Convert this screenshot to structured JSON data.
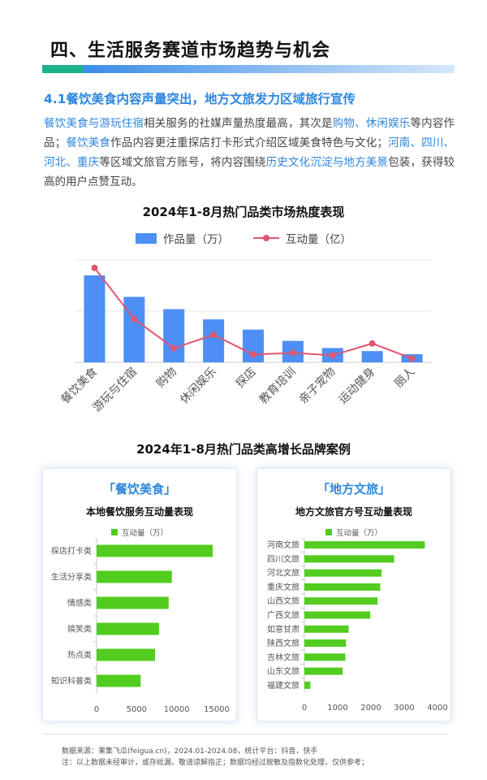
{
  "header": {
    "section_title": "四、生活服务赛道市场趋势与机会"
  },
  "subtitle": "4.1餐饮美食内容声量突出，地方文旅发力区域旅行宣传",
  "paragraph": {
    "seg1": "餐饮美食与游玩住宿",
    "seg2": "相关服务的社媒声量热度最高，其次是",
    "seg3": "购物、休闲娱乐",
    "seg4": "等内容作品；",
    "seg5": "餐饮美食",
    "seg6": "作品内容更注重探店打卡形式介绍区域美食特色与文化；",
    "seg7": "河南、四川、河北、重庆",
    "seg8": "等区域文旅官方账号，将内容围绕",
    "seg9": "历史文化沉淀与地方美景",
    "seg10": "包装，获得较高的用户点赞互动。"
  },
  "main_chart": {
    "title": "2024年1-8月热门品类市场热度表现",
    "legend_bar": "作品量（万）",
    "legend_line": "互动量（亿）"
  },
  "cases_title": "2024年1-8月热门品类高增长品牌案例",
  "card_left": {
    "head": "「餐饮美食」",
    "sub": "本地餐饮服务互动量表现",
    "legend": "互动量（万）"
  },
  "card_right": {
    "head": "「地方文旅」",
    "sub": "地方文旅官方号互动量表现",
    "legend": "互动量（万）"
  },
  "colors": {
    "accent_blue": "#2e86de",
    "bar_blue": "#4d8ff5",
    "line_red": "#e0566f",
    "bar_green": "#52cc1f",
    "title_green": "#19b38a"
  },
  "chart_data": [
    {
      "type": "bar",
      "title": "2024年1-8月热门品类市场热度表现",
      "categories": [
        "餐饮美食",
        "游玩与住宿",
        "购物",
        "休闲娱乐",
        "探店",
        "教育培训",
        "亲子宠物",
        "运动健身",
        "丽人"
      ],
      "series": [
        {
          "name": "作品量（万）",
          "type": "bar",
          "values": [
            85,
            64,
            52,
            42,
            32,
            21,
            14,
            11,
            8
          ]
        },
        {
          "name": "互动量（亿）",
          "type": "line",
          "values": [
            12,
            5.5,
            1.8,
            3.5,
            1,
            1.2,
            0.9,
            2.4,
            0.5
          ]
        }
      ],
      "grid": true,
      "legend": "top-center"
    },
    {
      "type": "bar",
      "orientation": "horizontal",
      "title": "本地餐饮服务互动量表现",
      "categories": [
        "探店打卡类",
        "生活分享类",
        "情感类",
        "搞笑类",
        "热点类",
        "知识科普类"
      ],
      "series": [
        {
          "name": "互动量（万）",
          "values": [
            14500,
            9400,
            9000,
            7800,
            7300,
            5500
          ]
        }
      ],
      "xlim": [
        0,
        15000
      ],
      "xticks": [
        "0",
        "5000",
        "10000",
        "15000"
      ],
      "legend": "top-center"
    },
    {
      "type": "bar",
      "orientation": "horizontal",
      "title": "地方文旅官方号互动量表现",
      "categories": [
        "河南文旅",
        "四川文旅",
        "河北文旅",
        "重庆文旅",
        "山西文旅",
        "广西文旅",
        "如意甘肃",
        "陕西文旅",
        "吉林文旅",
        "山东文旅",
        "福建文旅"
      ],
      "series": [
        {
          "name": "互动量（万）",
          "values": [
            3620,
            2700,
            2320,
            2280,
            2200,
            1980,
            1330,
            1250,
            1230,
            1150,
            180
          ]
        }
      ],
      "xlim": [
        0,
        4000
      ],
      "xticks": [
        "0",
        "1000",
        "2000",
        "3000",
        "4000"
      ],
      "legend": "top-center"
    }
  ],
  "footer": {
    "line1": "数据来源：果集飞瓜(feigua.cn)，2024.01-2024.08，统计平台：抖音，快手",
    "line2": "注：以上数据未经审计，或存纰漏，敬请谅解指正；数据均经过脱敏及指数化处理，仅供参考；"
  }
}
